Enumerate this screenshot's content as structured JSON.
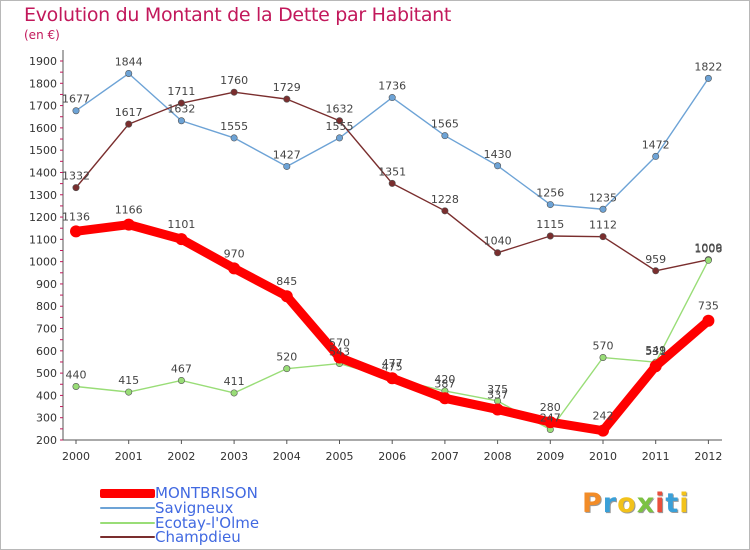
{
  "title": "Evolution du Montant de la Dette par Habitant",
  "unit_label": "(en €)",
  "logo_text": "Proxiti",
  "chart_data": {
    "type": "line",
    "title": "Evolution du Montant de la Dette par Habitant",
    "ylabel": "(en €)",
    "xlabel": "",
    "x": [
      "2000",
      "2001",
      "2002",
      "2003",
      "2004",
      "2005",
      "2006",
      "2007",
      "2008",
      "2009",
      "2010",
      "2011",
      "2012"
    ],
    "ylim": [
      200,
      1900
    ],
    "yticks": [
      200,
      300,
      400,
      500,
      600,
      700,
      800,
      900,
      1000,
      1100,
      1200,
      1300,
      1400,
      1500,
      1600,
      1700,
      1800,
      1900
    ],
    "grid": false,
    "legend_position": "bottom-left",
    "series": [
      {
        "name": "MONTBRISON",
        "color": "#ff0000",
        "values": [
          1136,
          1166,
          1101,
          970,
          845,
          570,
          477,
          387,
          337,
          280,
          242,
          531,
          735
        ],
        "labels": [
          "1136",
          "1166",
          "1101",
          "970",
          "845",
          "570",
          "477",
          "387",
          "337",
          "280",
          "242",
          "531",
          "735"
        ]
      },
      {
        "name": "Savigneux",
        "color": "#6da3d6",
        "values": [
          1677,
          1844,
          1632,
          1555,
          1427,
          1555,
          1736,
          1565,
          1430,
          1256,
          1235,
          1472,
          1822
        ],
        "labels": [
          "1677",
          "1844",
          "1632",
          "1555",
          "1427",
          "1555",
          "1736",
          "1565",
          "1430",
          "1256",
          "1235",
          "1472",
          "1822"
        ]
      },
      {
        "name": "Ecotay-l'Olme",
        "color": "#99dd77",
        "values": [
          440,
          415,
          467,
          411,
          520,
          543,
          475,
          420,
          375,
          247,
          570,
          549,
          1006
        ],
        "labels": [
          "440",
          "415",
          "467",
          "411",
          "520",
          "543",
          "475",
          "420",
          "375",
          "247",
          "570",
          "549",
          "1006"
        ]
      },
      {
        "name": "Champdieu",
        "color": "#7a2e2e",
        "values": [
          1332,
          1617,
          1711,
          1760,
          1729,
          1632,
          1351,
          1228,
          1040,
          1115,
          1112,
          959,
          1009
        ],
        "labels": [
          "1332",
          "1617",
          "1711",
          "1760",
          "1729",
          "1632",
          "1351",
          "1228",
          "1040",
          "1115",
          "1112",
          "959",
          "1009"
        ]
      }
    ]
  }
}
